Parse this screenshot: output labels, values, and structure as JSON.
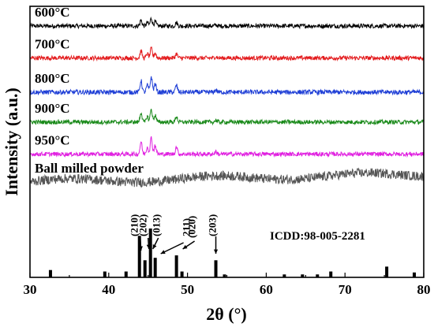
{
  "chart_data": {
    "type": "line",
    "title": "",
    "xlabel": "2θ (°)",
    "ylabel": "Intensity (a.u.)",
    "xlim": [
      30,
      80
    ],
    "x_ticks": [
      "30",
      "40",
      "50",
      "60",
      "70",
      "80"
    ],
    "y_ticks": [],
    "grid": false,
    "legend": "inline labels above each trace",
    "series": [
      {
        "name": "600°C",
        "color": "#000000",
        "baseline": 0.93,
        "noise": 0.01,
        "peak_scale": 0.45
      },
      {
        "name": "700°C",
        "color": "#e31a1c",
        "baseline": 0.78,
        "noise": 0.01,
        "peak_scale": 0.55
      },
      {
        "name": "800°C",
        "color": "#1f3fd6",
        "baseline": 0.62,
        "noise": 0.011,
        "peak_scale": 0.9
      },
      {
        "name": "900°C",
        "color": "#1a8a1a",
        "baseline": 0.48,
        "noise": 0.01,
        "peak_scale": 0.75
      },
      {
        "name": "950°C",
        "color": "#e020e0",
        "baseline": 0.33,
        "noise": 0.01,
        "peak_scale": 0.95
      },
      {
        "name": "Ball milled powder",
        "color": "#555555",
        "baseline": 0.2,
        "noise": 0.022,
        "peak_scale": 0.0,
        "slope": 0.035
      }
    ],
    "peaks_2theta": [
      {
        "x": 44.1,
        "rel": 0.75
      },
      {
        "x": 44.9,
        "rel": 0.45
      },
      {
        "x": 45.4,
        "rel": 1.0
      },
      {
        "x": 45.9,
        "rel": 0.55
      },
      {
        "x": 48.6,
        "rel": 0.45
      },
      {
        "x": 53.6,
        "rel": 0.15
      }
    ],
    "reference": {
      "label": "ICDD:98-005-2281",
      "sticks": [
        {
          "x": 32.6,
          "h": 0.15
        },
        {
          "x": 39.5,
          "h": 0.12
        },
        {
          "x": 42.2,
          "h": 0.12
        },
        {
          "x": 43.9,
          "h": 0.85
        },
        {
          "x": 44.6,
          "h": 0.35
        },
        {
          "x": 45.3,
          "h": 1.0
        },
        {
          "x": 45.9,
          "h": 0.4
        },
        {
          "x": 48.6,
          "h": 0.45
        },
        {
          "x": 49.3,
          "h": 0.12
        },
        {
          "x": 53.6,
          "h": 0.35
        },
        {
          "x": 54.7,
          "h": 0.06
        },
        {
          "x": 62.3,
          "h": 0.06
        },
        {
          "x": 64.6,
          "h": 0.06
        },
        {
          "x": 66.5,
          "h": 0.06
        },
        {
          "x": 68.2,
          "h": 0.12
        },
        {
          "x": 75.3,
          "h": 0.22
        },
        {
          "x": 78.8,
          "h": 0.1
        }
      ],
      "hkl": [
        "(210)",
        "(202)",
        "(013)",
        "211)",
        "(020)",
        "(203)"
      ]
    }
  }
}
